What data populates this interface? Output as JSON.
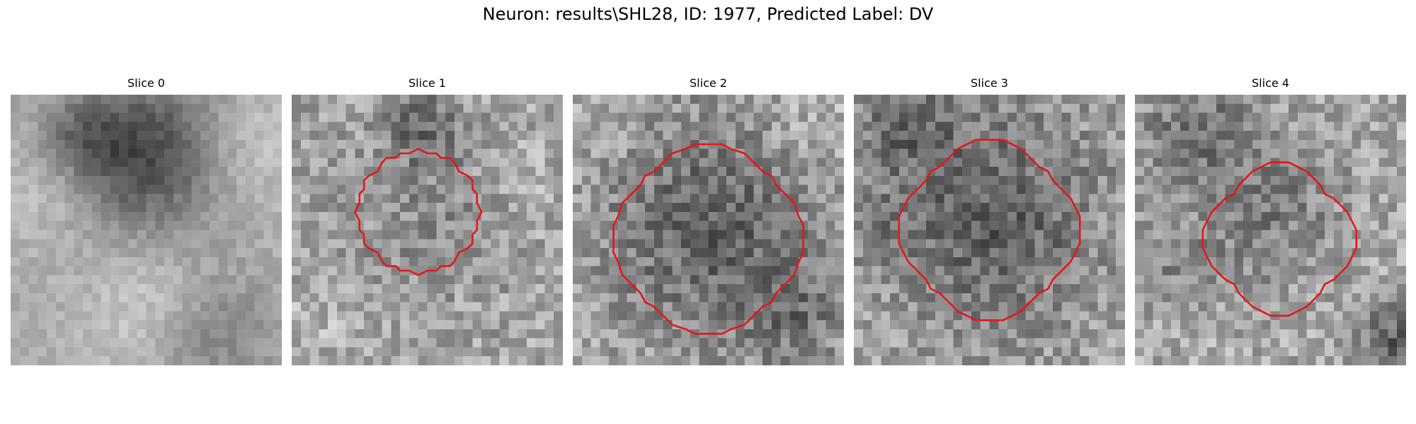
{
  "figure": {
    "title": "Neuron: results\\SHL28, ID: 1977, Predicted Label: DV"
  },
  "colors": {
    "contour": "#e6161b",
    "background": "#ffffff"
  },
  "colormap": "gray",
  "slices": [
    {
      "title": "Slice 0",
      "has_contour": false
    },
    {
      "title": "Slice 1",
      "has_contour": true
    },
    {
      "title": "Slice 2",
      "has_contour": true
    },
    {
      "title": "Slice 3",
      "has_contour": true
    },
    {
      "title": "Slice 4",
      "has_contour": true
    }
  ]
}
